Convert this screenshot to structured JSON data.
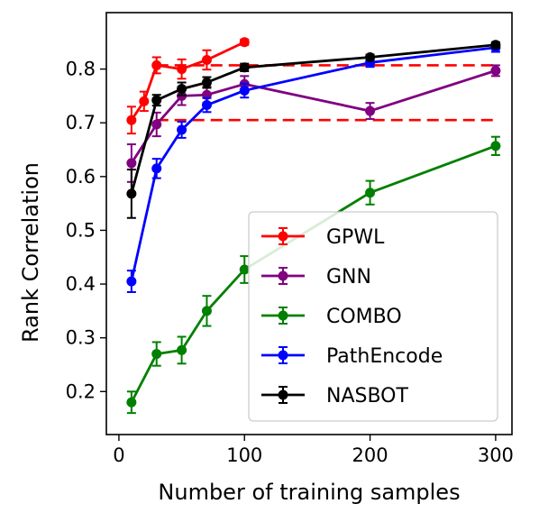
{
  "chart_data": {
    "type": "line",
    "xlabel": "Number of training samples",
    "ylabel": "Rank Correlation",
    "xlim": [
      -10,
      313
    ],
    "ylim": [
      0.12,
      0.905
    ],
    "xticks": [
      0,
      100,
      200,
      300
    ],
    "yticks": [
      0.2,
      0.3,
      0.4,
      0.5,
      0.6,
      0.7,
      0.8
    ],
    "ytick_labels": [
      "0.2",
      "0.3",
      "0.4",
      "0.5",
      "0.6",
      "0.7",
      "0.8"
    ],
    "grid": false,
    "legend_position": "lower-right",
    "reference_lines": [
      {
        "style": "dashed",
        "color": "#ff0000",
        "y": 0.807,
        "x_range": [
          30,
          300
        ]
      },
      {
        "style": "dashed",
        "color": "#ff0000",
        "y": 0.705,
        "x_range": [
          30,
          300
        ]
      }
    ],
    "series": [
      {
        "name": "GPWL",
        "color": "#ff0000",
        "x": [
          10,
          20,
          30,
          50,
          70,
          100
        ],
        "y": [
          0.705,
          0.74,
          0.807,
          0.8,
          0.817,
          0.85
        ],
        "err": [
          0.025,
          0.018,
          0.015,
          0.018,
          0.018,
          0.005
        ]
      },
      {
        "name": "GNN",
        "color": "#800080",
        "x": [
          10,
          30,
          50,
          70,
          100,
          200,
          300
        ],
        "y": [
          0.625,
          0.697,
          0.75,
          0.752,
          0.772,
          0.722,
          0.797
        ],
        "err": [
          0.035,
          0.022,
          0.017,
          0.015,
          0.015,
          0.015,
          0.01
        ]
      },
      {
        "name": "COMBO",
        "color": "#008000",
        "x": [
          10,
          30,
          50,
          70,
          100,
          200,
          300
        ],
        "y": [
          0.18,
          0.27,
          0.277,
          0.35,
          0.427,
          0.57,
          0.657
        ],
        "err": [
          0.02,
          0.022,
          0.025,
          0.028,
          0.025,
          0.022,
          0.017
        ]
      },
      {
        "name": "PathEncode",
        "color": "#0000ff",
        "x": [
          10,
          30,
          50,
          70,
          100,
          200,
          300
        ],
        "y": [
          0.405,
          0.615,
          0.687,
          0.733,
          0.76,
          0.812,
          0.84
        ],
        "err": [
          0.02,
          0.018,
          0.015,
          0.013,
          0.013,
          0.008,
          0.008
        ]
      },
      {
        "name": "NASBOT",
        "color": "#000000",
        "x": [
          10,
          30,
          50,
          70,
          100,
          200,
          300
        ],
        "y": [
          0.568,
          0.742,
          0.763,
          0.775,
          0.803,
          0.822,
          0.845
        ],
        "err": [
          0.045,
          0.01,
          0.012,
          0.01,
          0.007,
          0.005,
          0.005
        ]
      }
    ]
  }
}
